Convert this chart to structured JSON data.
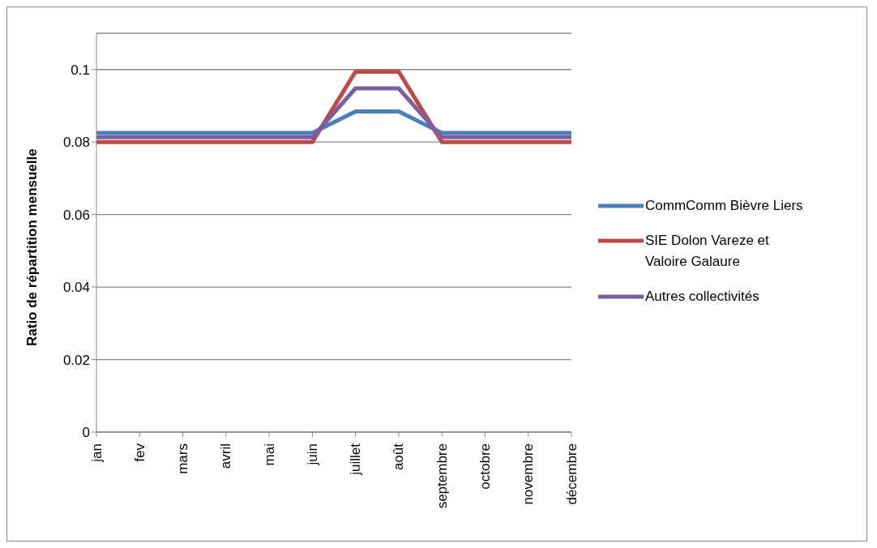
{
  "chart_data": {
    "type": "line",
    "ylabel": "Ratio de répartition mensuelle",
    "categories": [
      "jan",
      "fev",
      "mars",
      "avril",
      "mai",
      "juin",
      "juillet",
      "août",
      "septembre",
      "octobre",
      "novembre",
      "décembre"
    ],
    "series": [
      {
        "name": "CommComm Bièvre Liers",
        "color": "#4a7ebb",
        "values": [
          0.0825,
          0.0825,
          0.0825,
          0.0825,
          0.0825,
          0.0825,
          0.0884,
          0.0884,
          0.0825,
          0.0825,
          0.0825,
          0.0825
        ]
      },
      {
        "name": "SIE Dolon Vareze et Valoire Galaure",
        "color": "#be4b48",
        "values": [
          0.08,
          0.08,
          0.08,
          0.08,
          0.08,
          0.08,
          0.0994,
          0.0994,
          0.08,
          0.08,
          0.08,
          0.08
        ]
      },
      {
        "name": "Autres collectivités",
        "color": "#7d5fa0",
        "values": [
          0.0813,
          0.0813,
          0.0813,
          0.0813,
          0.0813,
          0.0813,
          0.0948,
          0.0948,
          0.0813,
          0.0813,
          0.0813,
          0.0813
        ]
      }
    ],
    "ylim": [
      0,
      0.11
    ],
    "yticks": [
      0,
      0.02,
      0.04,
      0.06,
      0.08,
      0.1
    ],
    "grid": "y",
    "legend": "right",
    "marker": "none",
    "line_style": "solid"
  }
}
